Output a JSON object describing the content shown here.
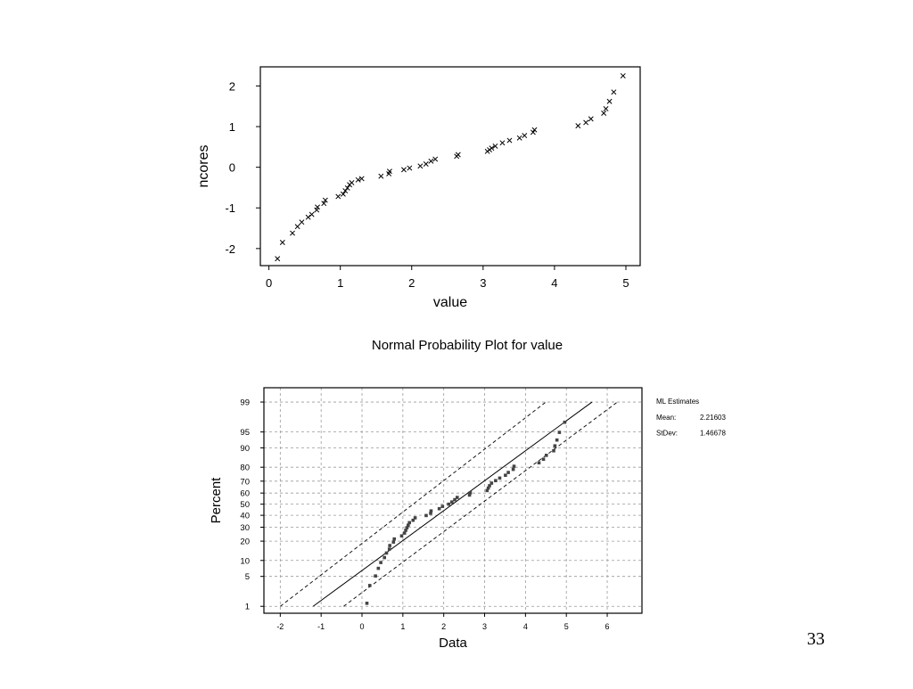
{
  "slide": {
    "page_number": "33"
  },
  "chart_data": [
    {
      "type": "scatter",
      "title": "",
      "xlabel": "value",
      "ylabel": "ncores",
      "xlim": [
        -0.12,
        5.2
      ],
      "ylim": [
        -2.42,
        2.47
      ],
      "xticks": [
        0,
        1,
        2,
        3,
        4,
        5
      ],
      "xtick_labels": [
        "0",
        "1",
        "2",
        "3",
        "4",
        "5"
      ],
      "yticks": [
        -2,
        -1,
        0,
        1,
        2
      ],
      "ytick_labels": [
        "-2",
        "-1",
        "0",
        "1",
        "2"
      ],
      "grid": false,
      "marker": "x",
      "points": [
        [
          0.12,
          -2.25
        ],
        [
          0.19,
          -1.85
        ],
        [
          0.33,
          -1.62
        ],
        [
          0.4,
          -1.46
        ],
        [
          0.46,
          -1.35
        ],
        [
          0.55,
          -1.23
        ],
        [
          0.6,
          -1.16
        ],
        [
          0.67,
          -1.05
        ],
        [
          0.68,
          -0.98
        ],
        [
          0.77,
          -0.89
        ],
        [
          0.79,
          -0.81
        ],
        [
          0.97,
          -0.72
        ],
        [
          1.04,
          -0.66
        ],
        [
          1.07,
          -0.58
        ],
        [
          1.1,
          -0.51
        ],
        [
          1.13,
          -0.43
        ],
        [
          1.16,
          -0.38
        ],
        [
          1.25,
          -0.31
        ],
        [
          1.3,
          -0.28
        ],
        [
          1.57,
          -0.22
        ],
        [
          1.68,
          -0.16
        ],
        [
          1.69,
          -0.1
        ],
        [
          1.89,
          -0.06
        ],
        [
          1.97,
          -0.02
        ],
        [
          2.12,
          0.03
        ],
        [
          2.2,
          0.08
        ],
        [
          2.27,
          0.15
        ],
        [
          2.33,
          0.2
        ],
        [
          2.63,
          0.27
        ],
        [
          2.65,
          0.31
        ],
        [
          3.06,
          0.39
        ],
        [
          3.09,
          0.43
        ],
        [
          3.12,
          0.47
        ],
        [
          3.17,
          0.52
        ],
        [
          3.27,
          0.6
        ],
        [
          3.37,
          0.66
        ],
        [
          3.51,
          0.72
        ],
        [
          3.58,
          0.78
        ],
        [
          3.7,
          0.86
        ],
        [
          3.72,
          0.92
        ],
        [
          4.33,
          1.02
        ],
        [
          4.44,
          1.1
        ],
        [
          4.51,
          1.19
        ],
        [
          4.69,
          1.33
        ],
        [
          4.72,
          1.44
        ],
        [
          4.77,
          1.62
        ],
        [
          4.83,
          1.85
        ],
        [
          4.96,
          2.25
        ]
      ]
    },
    {
      "type": "scatter",
      "title": "Normal Probability Plot for value",
      "xlabel": "Data",
      "ylabel": "Percent",
      "xlim": [
        -2.4,
        6.85
      ],
      "ylim_percent": [
        0.65,
        99.6
      ],
      "xticks": [
        -2,
        -1,
        0,
        1,
        2,
        3,
        4,
        5,
        6
      ],
      "xtick_labels": [
        "-2",
        "-1",
        "0",
        "1",
        "2",
        "3",
        "4",
        "5",
        "6"
      ],
      "yticks_percent": [
        1,
        5,
        10,
        20,
        30,
        40,
        50,
        60,
        70,
        80,
        90,
        95,
        99
      ],
      "ytick_labels": [
        "1",
        "5",
        "10",
        "20",
        "30",
        "40",
        "50",
        "60",
        "70",
        "80",
        "90",
        "95",
        "99"
      ],
      "y_scale": "normal probability",
      "grid": true,
      "legend": {
        "title": "ML Estimates",
        "rows": [
          {
            "label": "Mean:",
            "value": "2.21603"
          },
          {
            "label": "StDev:",
            "value": "1.46678"
          }
        ]
      },
      "fit_line": {
        "mean": 2.21603,
        "stdev": 1.46678
      },
      "confidence_band": {
        "lower": [
          [
            -0.45,
            1
          ],
          [
            6.25,
            99
          ]
        ],
        "upper": [
          [
            -2.0,
            1
          ],
          [
            4.5,
            99
          ]
        ]
      },
      "points": [
        [
          0.12,
          1.2
        ],
        [
          0.19,
          3.2
        ],
        [
          0.33,
          5.1
        ],
        [
          0.4,
          7.2
        ],
        [
          0.46,
          9.2
        ],
        [
          0.55,
          11.2
        ],
        [
          0.6,
          13.3
        ],
        [
          0.67,
          15.3
        ],
        [
          0.68,
          17.3
        ],
        [
          0.77,
          19.4
        ],
        [
          0.79,
          21.4
        ],
        [
          0.97,
          23.5
        ],
        [
          1.04,
          25.5
        ],
        [
          1.07,
          27.6
        ],
        [
          1.1,
          29.6
        ],
        [
          1.13,
          31.6
        ],
        [
          1.16,
          33.7
        ],
        [
          1.25,
          35.7
        ],
        [
          1.3,
          37.8
        ],
        [
          1.57,
          39.8
        ],
        [
          1.68,
          41.8
        ],
        [
          1.69,
          43.9
        ],
        [
          1.89,
          45.9
        ],
        [
          1.97,
          48.0
        ],
        [
          2.12,
          50.0
        ],
        [
          2.2,
          52.0
        ],
        [
          2.27,
          54.1
        ],
        [
          2.33,
          56.1
        ],
        [
          2.63,
          58.2
        ],
        [
          2.65,
          60.2
        ],
        [
          3.06,
          62.2
        ],
        [
          3.09,
          64.3
        ],
        [
          3.12,
          66.3
        ],
        [
          3.17,
          68.4
        ],
        [
          3.27,
          70.4
        ],
        [
          3.37,
          72.4
        ],
        [
          3.51,
          74.5
        ],
        [
          3.58,
          76.5
        ],
        [
          3.7,
          78.6
        ],
        [
          3.72,
          80.6
        ],
        [
          4.33,
          82.7
        ],
        [
          4.44,
          84.7
        ],
        [
          4.51,
          86.7
        ],
        [
          4.69,
          88.8
        ],
        [
          4.72,
          90.8
        ],
        [
          4.77,
          92.8
        ],
        [
          4.83,
          94.9
        ],
        [
          4.96,
          96.9
        ]
      ]
    }
  ]
}
